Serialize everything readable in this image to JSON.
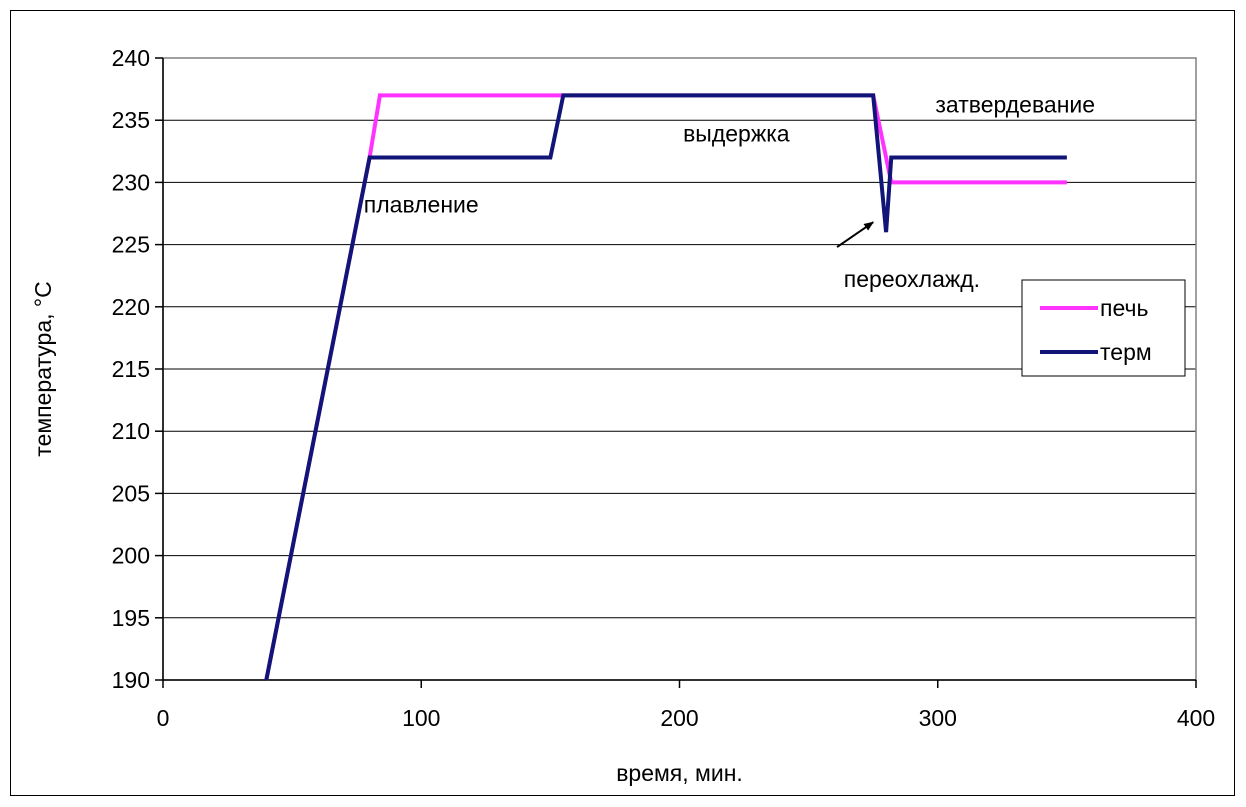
{
  "chart_data": {
    "type": "line",
    "title": "",
    "xlabel": "время, мин.",
    "ylabel": "температура, °C",
    "xlim": [
      0,
      400
    ],
    "ylim": [
      190,
      240
    ],
    "xticks": [
      0,
      100,
      200,
      300,
      400
    ],
    "yticks": [
      190,
      195,
      200,
      205,
      210,
      215,
      220,
      225,
      230,
      235,
      240
    ],
    "grid": "horizontal",
    "legend_position": "right",
    "series": [
      {
        "name": "печь",
        "color": "#ff33ff",
        "x": [
          40,
          80,
          84,
          155,
          275,
          282,
          350
        ],
        "y": [
          190,
          232,
          237,
          237,
          237,
          230,
          230
        ]
      },
      {
        "name": "терм",
        "color": "#101577",
        "x": [
          40,
          80,
          150,
          155,
          275,
          280,
          282,
          350
        ],
        "y": [
          190,
          232,
          232,
          237,
          237,
          226,
          232,
          232
        ]
      }
    ],
    "annotations": [
      {
        "text": "плавление",
        "x": 100,
        "y": 227.6,
        "anchor": "middle"
      },
      {
        "text": "выдержка",
        "x": 222,
        "y": 233.3,
        "anchor": "middle"
      },
      {
        "text": "затвердевание",
        "x": 330,
        "y": 235.6,
        "anchor": "middle"
      },
      {
        "text": "переохлажд.",
        "x": 290,
        "y": 221.6,
        "anchor": "middle",
        "arrow_from": [
          261,
          224.8
        ],
        "arrow_to": [
          275,
          226.8
        ]
      }
    ]
  }
}
